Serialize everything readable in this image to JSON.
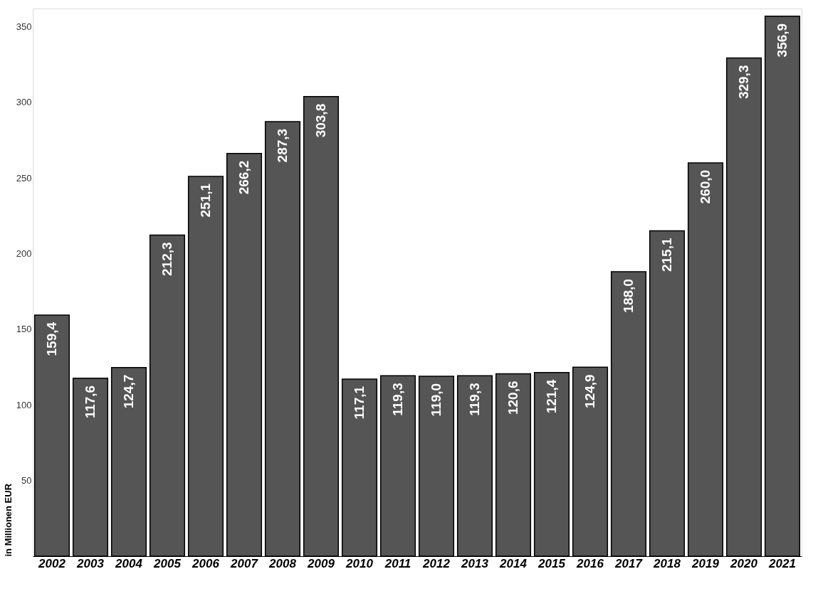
{
  "chart_data": {
    "type": "bar",
    "ylabel": "in Millionen EUR",
    "categories": [
      "2002",
      "2003",
      "2004",
      "2005",
      "2006",
      "2007",
      "2008",
      "2009",
      "2010",
      "2011",
      "2012",
      "2013",
      "2014",
      "2015",
      "2016",
      "2017",
      "2018",
      "2019",
      "2020",
      "2021"
    ],
    "values": [
      159.4,
      117.6,
      124.7,
      212.3,
      251.1,
      266.2,
      287.3,
      303.8,
      117.1,
      119.3,
      119.0,
      119.3,
      120.6,
      121.4,
      124.9,
      188.0,
      215.1,
      260.0,
      329.3,
      356.9
    ],
    "value_labels": [
      "159,4",
      "117,6",
      "124,7",
      "212,3",
      "251,1",
      "266,2",
      "287,3",
      "303,8",
      "117,1",
      "119,3",
      "119,0",
      "119,3",
      "120,6",
      "121,4",
      "124,9",
      "188,0",
      "215,1",
      "260,0",
      "329,3",
      "356,9"
    ],
    "color": "#555555",
    "ylim": [
      0,
      362
    ],
    "yticks": [
      50,
      100,
      150,
      200,
      250,
      300,
      350
    ],
    "grid": false
  }
}
